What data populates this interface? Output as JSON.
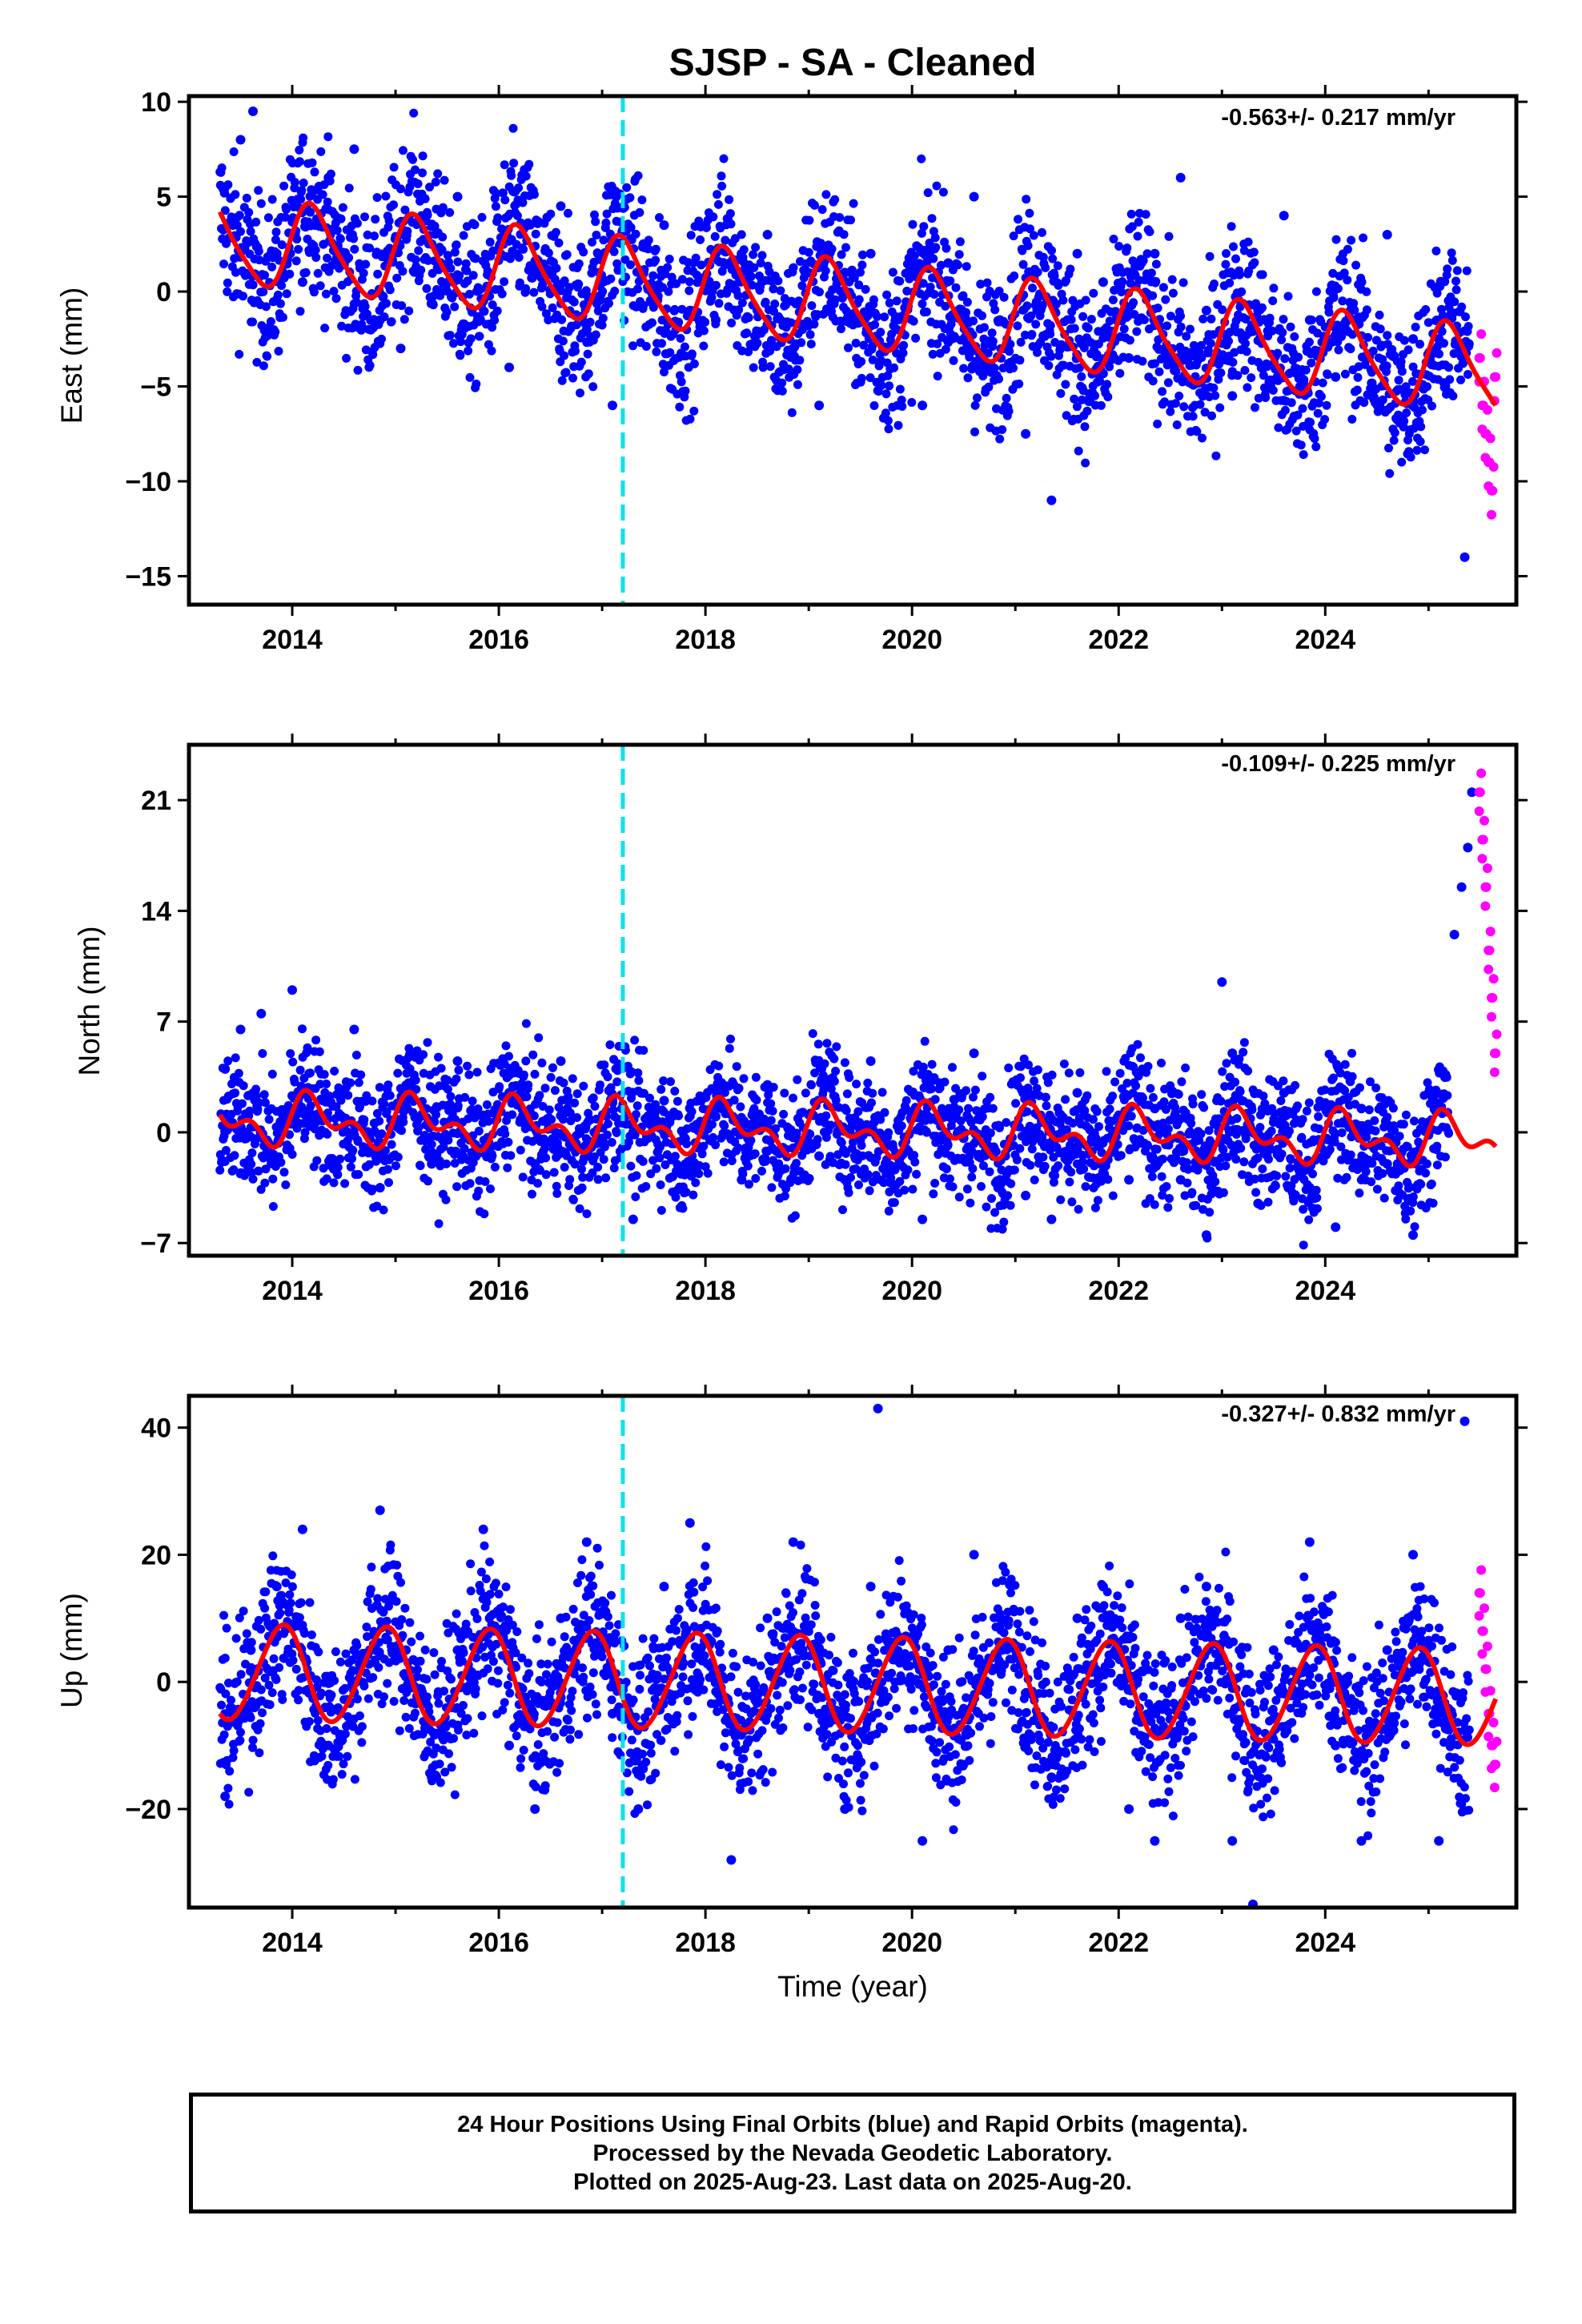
{
  "title": "SJSP  - SA - Cleaned",
  "xlabel": "Time (year)",
  "colors": {
    "final_orbits": "#0000ff",
    "rapid_orbits": "#ff00ff",
    "fit_line": "#ff0000",
    "event_line": "#00e5ee",
    "frame": "#000000"
  },
  "caption": {
    "line1": "24 Hour Positions Using Final Orbits (blue) and Rapid Orbits (magenta).",
    "line2": "Processed by the Nevada Geodetic Laboratory.",
    "line3": "Plotted on 2025-Aug-23. Last data on 2025-Aug-20."
  },
  "chart_data": [
    {
      "type": "scatter",
      "ylabel": "East (mm)",
      "rate_label": "-0.563+/- 0.217 mm/yr",
      "xlim": [
        2013.0,
        2025.85
      ],
      "ylim": [
        -16.5,
        10.3
      ],
      "xticks": [
        2014,
        2016,
        2018,
        2020,
        2022,
        2024
      ],
      "yticks": [
        10,
        5,
        0,
        -5,
        -10,
        -15
      ],
      "ytick_labels": [
        "10",
        "5",
        "0",
        "−5",
        "−10",
        "−15"
      ],
      "data_range": [
        2013.3,
        2025.4
      ],
      "event_line_x": 2017.2,
      "model": {
        "offset": 2.7,
        "trend": -0.563,
        "t0": 2013.3,
        "amp1": 2.2,
        "phase1": 0.3,
        "amp2": 0.4
      },
      "scatter": 2.1,
      "series": [
        {
          "name": "Final Orbits (blue)",
          "x": [
            2013.35,
            2013.5,
            2013.62,
            2013.85,
            2014.1,
            2014.35,
            2014.6,
            2014.85,
            2015.05,
            2015.35,
            2015.6,
            2015.85,
            2016.1,
            2016.35,
            2016.6,
            2016.85,
            2017.1,
            2017.4,
            2017.6,
            2017.85,
            2018.1,
            2018.35,
            2018.6,
            2018.85,
            2019.1,
            2019.35,
            2019.6,
            2019.85,
            2020.1,
            2020.35,
            2020.6,
            2020.85,
            2021.1,
            2021.35,
            2021.6,
            2021.85,
            2022.1,
            2022.35,
            2022.6,
            2022.85,
            2023.1,
            2023.35,
            2023.6,
            2023.85,
            2024.1,
            2024.35,
            2024.6,
            2024.85,
            2025.1,
            2025.35
          ],
          "y": [
            5.5,
            8.0,
            9.5,
            2.0,
            0.5,
            6.0,
            7.5,
            -1.5,
            -3.0,
            2.5,
            5.0,
            -0.5,
            -4.0,
            1.0,
            4.5,
            -2.0,
            -6.0,
            2.5,
            3.5,
            -1.0,
            -1.5,
            1.0,
            3.0,
            -3.0,
            -6.0,
            1.0,
            2.0,
            -2.0,
            -6.0,
            1.5,
            5.0,
            -1.5,
            -7.5,
            -11.0,
            2.0,
            0.5,
            -3.5,
            2.0,
            6.0,
            -1.0,
            -5.5,
            -1.0,
            4.0,
            -1.5,
            -4.5,
            0.5,
            3.0,
            -2.5,
            -2.5,
            -14.0
          ]
        },
        {
          "name": "Rapid Orbits (magenta)",
          "x": [
            2025.49,
            2025.52,
            2025.55,
            2025.58,
            2025.61,
            2025.64
          ],
          "y": [
            -3.5,
            -6.0,
            -7.5,
            -9.0,
            -10.5,
            -4.5
          ]
        }
      ]
    },
    {
      "type": "scatter",
      "ylabel": "North (mm)",
      "rate_label": "-0.109+/- 0.225 mm/yr",
      "xlim": [
        2013.0,
        2025.85
      ],
      "ylim": [
        -7.8,
        24.5
      ],
      "xticks": [
        2014,
        2016,
        2018,
        2020,
        2022,
        2024
      ],
      "yticks": [
        21,
        14,
        7,
        0,
        -7
      ],
      "ytick_labels": [
        "21",
        "14",
        "7",
        "0",
        "−7"
      ],
      "data_range": [
        2013.3,
        2025.2
      ],
      "event_line_x": 2017.2,
      "model": {
        "offset": 0.8,
        "trend": -0.109,
        "t0": 2013.3,
        "amp1": 1.2,
        "phase1": 0.3,
        "amp2": 0.9
      },
      "scatter": 2.0,
      "series": [
        {
          "name": "Final Orbits (blue)",
          "x": [
            2013.35,
            2013.5,
            2013.7,
            2014.0,
            2014.3,
            2014.6,
            2014.85,
            2015.1,
            2015.35,
            2015.6,
            2015.85,
            2016.1,
            2016.35,
            2016.6,
            2016.85,
            2017.1,
            2017.3,
            2017.6,
            2017.85,
            2018.1,
            2018.35,
            2018.6,
            2018.85,
            2019.1,
            2019.35,
            2019.6,
            2019.85,
            2020.1,
            2020.35,
            2020.6,
            2020.85,
            2021.1,
            2021.35,
            2021.6,
            2021.85,
            2022.1,
            2022.35,
            2022.6,
            2022.85,
            2023.0,
            2023.1,
            2023.35,
            2023.6,
            2023.85,
            2024.1,
            2024.35,
            2024.6,
            2024.85,
            2025.1,
            2025.25,
            2025.32,
            2025.38,
            2025.42
          ],
          "y": [
            4.0,
            6.5,
            7.5,
            9.0,
            2.0,
            6.5,
            -3.5,
            2.0,
            -2.0,
            4.5,
            -1.0,
            2.5,
            -2.0,
            4.5,
            -1.5,
            2.0,
            -5.5,
            2.0,
            -2.0,
            1.0,
            -3.0,
            3.0,
            -1.0,
            -1.5,
            1.5,
            4.5,
            -1.5,
            -5.5,
            1.0,
            5.0,
            -3.0,
            -4.0,
            -5.5,
            2.5,
            -2.5,
            -3.0,
            1.5,
            -3.0,
            -6.5,
            9.5,
            5.0,
            -4.5,
            2.5,
            -3.5,
            -6.0,
            1.5,
            -2.0,
            -6.5,
            1.5,
            12.5,
            15.5,
            18.0,
            21.5
          ]
        },
        {
          "name": "Rapid Orbits (magenta)",
          "x": [
            2025.49,
            2025.52,
            2025.55,
            2025.58,
            2025.61,
            2025.64
          ],
          "y": [
            21.5,
            18.5,
            15.5,
            11.5,
            8.5,
            5.0
          ]
        }
      ]
    },
    {
      "type": "scatter",
      "ylabel": "Up (mm)",
      "rate_label": "-0.327+/- 0.832 mm/yr",
      "xlim": [
        2013.0,
        2025.85
      ],
      "ylim": [
        -35.5,
        45.0
      ],
      "xticks": [
        2014,
        2016,
        2018,
        2020,
        2022,
        2024
      ],
      "yticks": [
        40,
        20,
        0,
        -20
      ],
      "ytick_labels": [
        "40",
        "20",
        "0",
        "−20"
      ],
      "data_range": [
        2013.3,
        2025.4
      ],
      "event_line_x": 2017.2,
      "model": {
        "offset": 1.5,
        "trend": -0.327,
        "t0": 2013.3,
        "amp1": 7.5,
        "phase1": 2.2,
        "amp2": 0.5
      },
      "scatter": 6.0,
      "series": [
        {
          "name": "Final Orbits (blue)",
          "x": [
            2013.35,
            2013.6,
            2013.85,
            2014.1,
            2014.35,
            2014.6,
            2014.85,
            2015.1,
            2015.35,
            2015.6,
            2015.85,
            2016.1,
            2016.35,
            2016.6,
            2016.85,
            2017.1,
            2017.35,
            2017.6,
            2017.85,
            2018.1,
            2018.25,
            2018.6,
            2018.85,
            2019.1,
            2019.35,
            2019.6,
            2019.67,
            2019.85,
            2020.1,
            2020.35,
            2020.6,
            2020.85,
            2021.1,
            2021.35,
            2021.6,
            2021.85,
            2022.1,
            2022.35,
            2022.6,
            2022.85,
            2023.1,
            2023.3,
            2023.5,
            2023.85,
            2024.1,
            2024.35,
            2024.6,
            2024.85,
            2025.1,
            2025.35
          ],
          "y": [
            -18.0,
            5.0,
            15.0,
            24.0,
            -10.0,
            5.0,
            27.0,
            5.0,
            -15.0,
            5.0,
            24.0,
            -10.0,
            -20.0,
            10.0,
            22.0,
            -5.0,
            -20.0,
            15.0,
            25.0,
            0.0,
            -28.0,
            10.0,
            22.0,
            -5.0,
            -20.0,
            15.0,
            43.0,
            5.0,
            -25.0,
            5.0,
            20.0,
            10.0,
            -10.0,
            -15.0,
            10.0,
            15.0,
            -20.0,
            -25.0,
            10.0,
            15.0,
            -25.0,
            -35.0,
            5.0,
            22.0,
            -10.0,
            -25.0,
            5.0,
            20.0,
            -25.0,
            41.0
          ]
        },
        {
          "name": "Rapid Orbits (magenta)",
          "x": [
            2025.49,
            2025.52,
            2025.55,
            2025.58,
            2025.61,
            2025.64
          ],
          "y": [
            14.0,
            8.0,
            2.0,
            -5.0,
            -10.0,
            -13.0
          ]
        }
      ]
    }
  ]
}
